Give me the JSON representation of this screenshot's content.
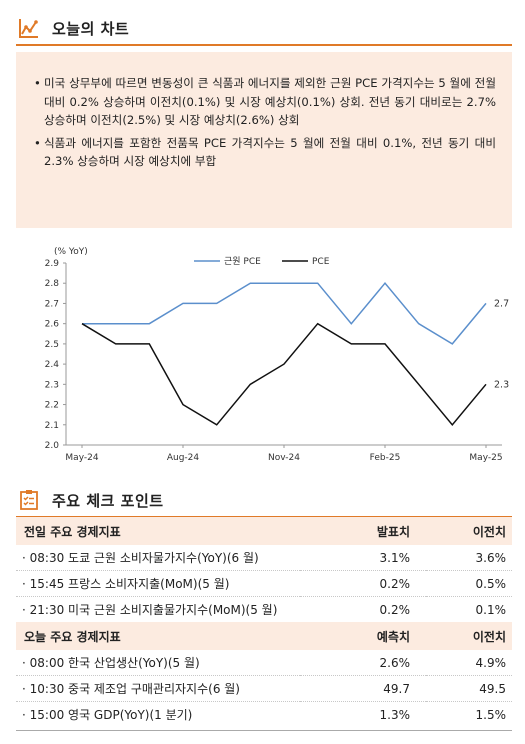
{
  "chart_section": {
    "title": "오늘의 차트",
    "icon": "line-chart-icon"
  },
  "summary": {
    "bullet": "•",
    "items": [
      "미국 상무부에 따르면 변동성이 큰 식품과 에너지를 제외한 근원 PCE 가격지수는 5 월에 전월 대비 0.2% 상승하며 이전치(0.1%) 및 시장 예상치(0.1%) 상회. 전년 동기 대비로는 2.7% 상승하며 이전치(2.5%) 및 시장 예상치(2.6%) 상회",
      "식품과 에너지를 포함한 전품목 PCE 가격지수는 5 월에 전월 대비 0.1%, 전년 동기 대비 2.3% 상승하며 시장 예상치에 부합"
    ]
  },
  "chart_data": {
    "type": "line",
    "ylabel": "(% YoY)",
    "ylim": [
      2.0,
      2.9
    ],
    "y_ticks": [
      "2.9",
      "2.8",
      "2.7",
      "2.6",
      "2.5",
      "2.4",
      "2.3",
      "2.2",
      "2.1",
      "2.0"
    ],
    "x": [
      "2024-05",
      "2024-06",
      "2024-07",
      "2024-08",
      "2024-09",
      "2024-10",
      "2024-11",
      "2024-12",
      "2025-01",
      "2025-02",
      "2025-03",
      "2025-04",
      "2025-05"
    ],
    "x_tick_labels": [
      "May-24",
      "Aug-24",
      "Nov-24",
      "Feb-25",
      "May-25"
    ],
    "legend": "top-center",
    "grid": false,
    "series": [
      {
        "name": "근원 PCE",
        "color": "#5b8fcc",
        "values": [
          2.6,
          2.6,
          2.6,
          2.7,
          2.7,
          2.8,
          2.8,
          2.8,
          2.6,
          2.8,
          2.6,
          2.5,
          2.7
        ],
        "end_label": "2.7"
      },
      {
        "name": "PCE",
        "color": "#111111",
        "values": [
          2.6,
          2.5,
          2.5,
          2.2,
          2.1,
          2.3,
          2.4,
          2.6,
          2.5,
          2.5,
          2.3,
          2.1,
          2.3
        ],
        "end_label": "2.3"
      }
    ]
  },
  "checkpoint_section": {
    "title": "주요 체크 포인트",
    "icon": "checklist-icon"
  },
  "prev_day": {
    "header": {
      "name": "전일 주요 경제지표",
      "col1": "발표치",
      "col2": "이전치"
    },
    "rows": [
      {
        "name": "· 08:30 도쿄 근원 소비자물가지수(YoY)(6 월)",
        "v1": "3.1%",
        "v2": "3.6%"
      },
      {
        "name": "· 15:45 프랑스 소비자지출(MoM)(5 월)",
        "v1": "0.2%",
        "v2": "0.5%"
      },
      {
        "name": "· 21:30 미국 근원 소비지출물가지수(MoM)(5 월)",
        "v1": "0.2%",
        "v2": "0.1%"
      }
    ]
  },
  "today": {
    "header": {
      "name": "오늘 주요 경제지표",
      "col1": "예측치",
      "col2": "이전치"
    },
    "rows": [
      {
        "name": "· 08:00 한국 산업생산(YoY)(5 월)",
        "v1": "2.6%",
        "v2": "4.9%"
      },
      {
        "name": "· 10:30 중국 제조업 구매관리자지수(6 월)",
        "v1": "49.7",
        "v2": "49.5"
      },
      {
        "name": "· 15:00 영국 GDP(YoY)(1 분기)",
        "v1": "1.3%",
        "v2": "1.5%"
      }
    ]
  }
}
